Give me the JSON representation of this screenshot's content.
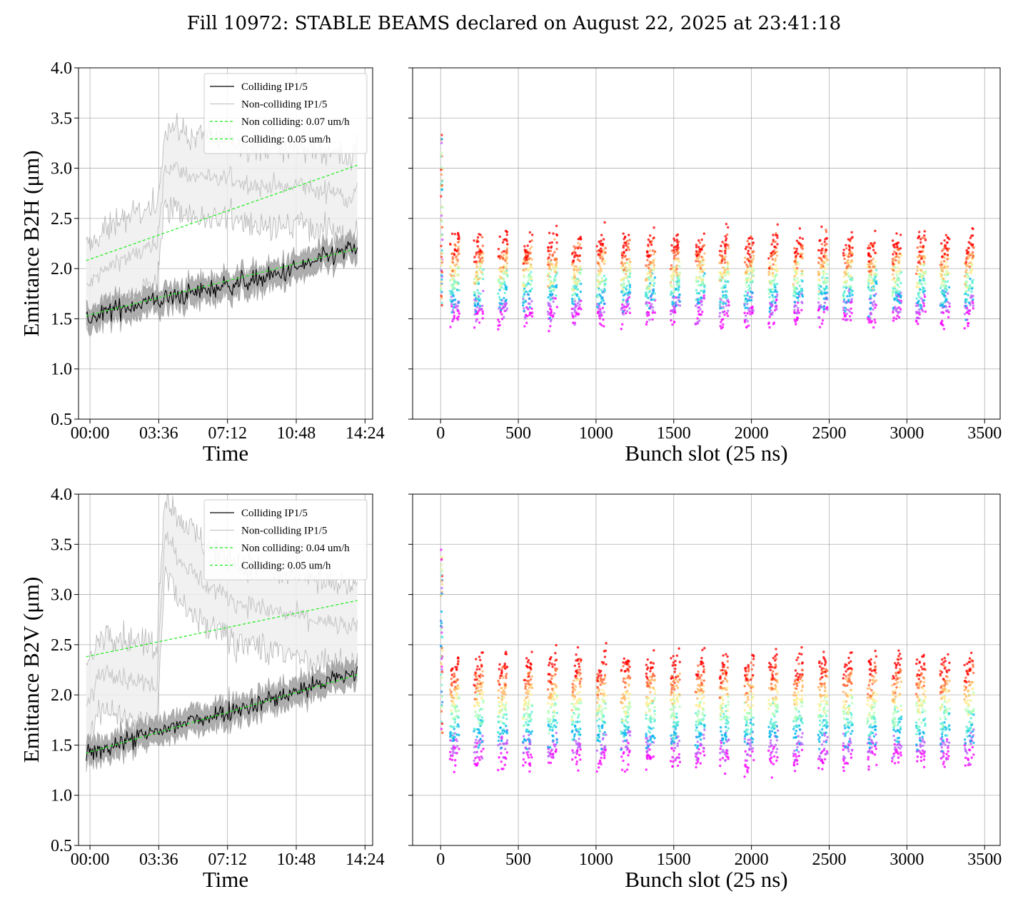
{
  "figure": {
    "title": "Fill 10972: STABLE BEAMS declared on August 22, 2025 at 23:41:18"
  },
  "colors": {
    "colliding": "#000000",
    "non_colliding": "#c8c8c8",
    "fit": "#22ee22",
    "band_colliding": "#a0a0a0",
    "band_non_colliding": "#efefef",
    "grid": "#b0b0b0"
  },
  "chart_data": [
    {
      "id": "b2h-time",
      "type": "line",
      "title": "",
      "xlabel": "Time",
      "ylabel": "Emittance B2H (μm)",
      "xlim_hours": [
        -0.6,
        14.8
      ],
      "ylim": [
        0.5,
        4.0
      ],
      "x_ticks": [
        0,
        3.6,
        7.2,
        10.8,
        14.4
      ],
      "x_tick_labels": [
        "00:00",
        "03:36",
        "07:12",
        "10:48",
        "14:24"
      ],
      "y_ticks": [
        0.5,
        1.0,
        1.5,
        2.0,
        2.5,
        3.0,
        3.5,
        4.0
      ],
      "y_tick_labels": [
        "0.5",
        "1.0",
        "1.5",
        "2.0",
        "2.5",
        "3.0",
        "3.5",
        "4.0"
      ],
      "grid": true,
      "legend_position": "top-right",
      "legend": [
        "Colliding IP1/5",
        "Non-colliding IP1/5",
        "Non colliding: 0.07 um/h",
        "Colliding: 0.05 um/h"
      ],
      "series": [
        {
          "name": "Colliding IP1/5",
          "x": [
            -0.2,
            0.5,
            1.0,
            1.5,
            2.0,
            2.5,
            3.0,
            3.5,
            4.0,
            4.5,
            5.0,
            5.5,
            6.0,
            6.5,
            7.0,
            7.5,
            8.0,
            8.5,
            9.0,
            9.5,
            10.0,
            10.5,
            11.0,
            11.5,
            12.0,
            12.5,
            13.0,
            13.5,
            14.0
          ],
          "values": [
            1.5,
            1.52,
            1.58,
            1.6,
            1.62,
            1.65,
            1.67,
            1.68,
            1.7,
            1.72,
            1.74,
            1.76,
            1.79,
            1.8,
            1.83,
            1.85,
            1.87,
            1.88,
            1.9,
            1.92,
            1.95,
            1.98,
            2.02,
            2.05,
            2.08,
            2.12,
            2.15,
            2.18,
            2.2
          ],
          "band_halfwidth": 0.12
        },
        {
          "name": "Non-colliding IP1/5",
          "x": [
            -0.2,
            0.5,
            1.0,
            1.5,
            2.0,
            2.5,
            3.0,
            3.5,
            3.9,
            4.5,
            5.0,
            5.5,
            6.0,
            6.5,
            7.0,
            7.5,
            8.0,
            8.5,
            9.0,
            9.5,
            10.0,
            10.5,
            11.0,
            11.5,
            12.0,
            12.5,
            13.0,
            13.5,
            14.0
          ],
          "values": [
            1.8,
            1.95,
            2.0,
            2.1,
            2.1,
            2.15,
            2.2,
            2.2,
            3.0,
            3.0,
            2.95,
            2.9,
            2.95,
            2.85,
            2.9,
            2.9,
            2.85,
            2.85,
            2.8,
            2.85,
            2.8,
            2.8,
            2.85,
            2.8,
            2.75,
            2.8,
            2.75,
            2.7,
            2.8
          ],
          "band_halfwidth": 0.4
        },
        {
          "name": "Non colliding: 0.07 um/h",
          "x": [
            -0.2,
            14.0
          ],
          "values": [
            2.08,
            3.03
          ]
        },
        {
          "name": "Colliding: 0.05 um/h",
          "x": [
            -0.2,
            14.0
          ],
          "values": [
            1.53,
            2.2
          ]
        }
      ]
    },
    {
      "id": "b2h-bunch",
      "type": "scatter",
      "title": "",
      "xlabel": "Bunch slot (25 ns)",
      "ylabel": "",
      "xlim": [
        -180,
        3600
      ],
      "ylim": [
        0.5,
        4.0
      ],
      "x_ticks": [
        0,
        500,
        1000,
        1500,
        2000,
        2500,
        3000,
        3500
      ],
      "x_tick_labels": [
        "0",
        "500",
        "1000",
        "1500",
        "2000",
        "2500",
        "3000",
        "3500"
      ],
      "y_ticks": [
        0.5,
        1.0,
        1.5,
        2.0,
        2.5,
        3.0,
        3.5,
        4.0
      ],
      "grid": true,
      "colormap": "rainbow (violet = start of fill, red = end of fill)",
      "train_starts": [
        60,
        215,
        370,
        530,
        690,
        845,
        1005,
        1160,
        1320,
        1480,
        1640,
        1795,
        1955,
        2110,
        2270,
        2430,
        2590,
        2745,
        2905,
        3060,
        3215,
        3370
      ],
      "train_length": 60,
      "emittance_start_range": [
        1.35,
        1.65
      ],
      "emittance_end_range": [
        1.95,
        2.35
      ]
    },
    {
      "id": "b2v-time",
      "type": "line",
      "title": "",
      "xlabel": "Time",
      "ylabel": "Emittance B2V (μm)",
      "xlim_hours": [
        -0.6,
        14.8
      ],
      "ylim": [
        0.5,
        4.0
      ],
      "x_ticks": [
        0,
        3.6,
        7.2,
        10.8,
        14.4
      ],
      "x_tick_labels": [
        "00:00",
        "03:36",
        "07:12",
        "10:48",
        "14:24"
      ],
      "y_ticks": [
        0.5,
        1.0,
        1.5,
        2.0,
        2.5,
        3.0,
        3.5,
        4.0
      ],
      "y_tick_labels": [
        "0.5",
        "1.0",
        "1.5",
        "2.0",
        "2.5",
        "3.0",
        "3.5",
        "4.0"
      ],
      "grid": true,
      "legend_position": "top-right",
      "legend": [
        "Colliding IP1/5",
        "Non-colliding IP1/5",
        "Non colliding: 0.04 um/h",
        "Colliding: 0.05 um/h"
      ],
      "series": [
        {
          "name": "Colliding IP1/5",
          "x": [
            -0.2,
            0.5,
            1.0,
            1.5,
            2.0,
            2.5,
            3.0,
            3.5,
            4.0,
            4.5,
            5.0,
            5.5,
            6.0,
            6.5,
            7.0,
            7.5,
            8.0,
            8.5,
            9.0,
            9.5,
            10.0,
            10.5,
            11.0,
            11.5,
            12.0,
            12.5,
            13.0,
            13.5,
            14.0
          ],
          "values": [
            1.42,
            1.45,
            1.48,
            1.52,
            1.55,
            1.57,
            1.6,
            1.63,
            1.66,
            1.69,
            1.72,
            1.75,
            1.78,
            1.8,
            1.83,
            1.86,
            1.88,
            1.9,
            1.93,
            1.96,
            1.99,
            2.02,
            2.05,
            2.08,
            2.11,
            2.14,
            2.17,
            2.2,
            2.22
          ],
          "band_halfwidth": 0.12
        },
        {
          "name": "Non-colliding IP1/5",
          "x": [
            -0.2,
            0.5,
            1.0,
            1.5,
            2.0,
            2.5,
            3.0,
            3.5,
            3.9,
            4.2,
            4.5,
            5.0,
            5.5,
            6.0,
            6.5,
            7.0,
            7.5,
            8.0,
            8.5,
            9.0,
            9.5,
            10.0,
            10.5,
            11.0,
            11.5,
            12.0,
            12.5,
            13.0,
            13.5,
            14.0
          ],
          "values": [
            1.85,
            2.2,
            2.25,
            2.2,
            2.15,
            2.15,
            2.1,
            2.1,
            3.6,
            3.55,
            3.4,
            3.3,
            3.2,
            3.1,
            3.05,
            3.0,
            2.95,
            2.9,
            2.9,
            2.85,
            2.85,
            2.8,
            2.8,
            2.8,
            2.75,
            2.75,
            2.7,
            2.7,
            2.68,
            2.65
          ],
          "band_halfwidth": 0.4
        },
        {
          "name": "Non colliding: 0.04 um/h",
          "x": [
            -0.2,
            14.0
          ],
          "values": [
            2.38,
            2.94
          ]
        },
        {
          "name": "Colliding: 0.05 um/h",
          "x": [
            -0.2,
            14.0
          ],
          "values": [
            1.42,
            2.2
          ]
        }
      ]
    },
    {
      "id": "b2v-bunch",
      "type": "scatter",
      "title": "",
      "xlabel": "Bunch slot (25 ns)",
      "ylabel": "",
      "xlim": [
        -180,
        3600
      ],
      "ylim": [
        0.5,
        4.0
      ],
      "x_ticks": [
        0,
        500,
        1000,
        1500,
        2000,
        2500,
        3000,
        3500
      ],
      "x_tick_labels": [
        "0",
        "500",
        "1000",
        "1500",
        "2000",
        "2500",
        "3000",
        "3500"
      ],
      "y_ticks": [
        0.5,
        1.0,
        1.5,
        2.0,
        2.5,
        3.0,
        3.5,
        4.0
      ],
      "grid": true,
      "colormap": "rainbow (violet = start of fill, red = end of fill)",
      "train_starts": [
        60,
        215,
        370,
        530,
        690,
        845,
        1005,
        1160,
        1320,
        1480,
        1640,
        1795,
        1955,
        2110,
        2270,
        2430,
        2590,
        2745,
        2905,
        3060,
        3215,
        3370
      ],
      "train_length": 60,
      "emittance_start_range": [
        1.25,
        1.45
      ],
      "emittance_end_range": [
        2.05,
        2.4
      ]
    }
  ]
}
